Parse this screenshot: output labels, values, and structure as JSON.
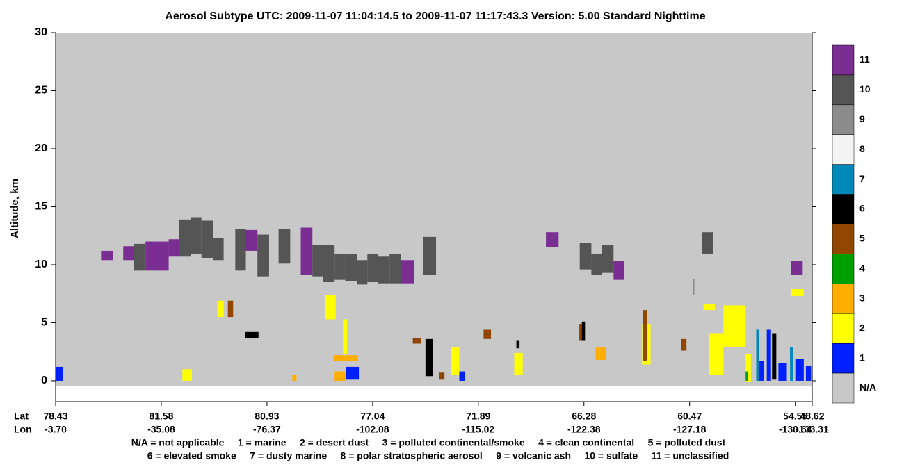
{
  "chart_data": {
    "type": "heatmap",
    "title": "Aerosol Subtype    UTC:  2009-11-07   11:04:14.5  to  2009-11-07   11:17:43.3    Version: 5.00  Standard Nighttime",
    "y_label": "Altitude, km",
    "x_row_labels": [
      "Lat",
      "Lon"
    ],
    "ylim": [
      -1.8,
      30
    ],
    "yticks": [
      0,
      5,
      10,
      15,
      20,
      25,
      30
    ],
    "xlim": [
      0,
      7.16
    ],
    "xticks": [
      {
        "value": 0,
        "lat": "78.43",
        "lon": "-3.70"
      },
      {
        "value": 1,
        "lat": "81.58",
        "lon": "-35.08"
      },
      {
        "value": 2,
        "lat": "80.93",
        "lon": "-76.37"
      },
      {
        "value": 3,
        "lat": "77.04",
        "lon": "-102.08"
      },
      {
        "value": 4,
        "lat": "71.89",
        "lon": "-115.02"
      },
      {
        "value": 5,
        "lat": "66.28",
        "lon": "-122.38"
      },
      {
        "value": 6,
        "lat": "60.47",
        "lon": "-127.18"
      },
      {
        "value": 7,
        "lat": "54.55",
        "lon": "-130.64"
      },
      {
        "value": 7.16,
        "lat": "48.62",
        "lon": "-133.31"
      }
    ],
    "classes": [
      {
        "code": 11,
        "color": "#7a2e92"
      },
      {
        "code": 10,
        "color": "#555555"
      },
      {
        "code": 9,
        "color": "#8c8c8c"
      },
      {
        "code": 8,
        "color": "#f4f4f4"
      },
      {
        "code": 7,
        "color": "#0088bb"
      },
      {
        "code": 6,
        "color": "#000000"
      },
      {
        "code": 5,
        "color": "#924700"
      },
      {
        "code": 4,
        "color": "#00a000"
      },
      {
        "code": 3,
        "color": "#ffae00"
      },
      {
        "code": 2,
        "color": "#ffff00"
      },
      {
        "code": 1,
        "color": "#0020ff"
      },
      {
        "code": "N/A",
        "color": "#c8c8c8"
      }
    ],
    "legend_text": [
      "N/A = not applicable     1 = marine     2 = desert dust     3 = polluted continental/smoke     4 = clean continental     5 = polluted dust",
      "6 = elevated smoke     7 = dusty marine     8 = polar stratospheric aerosol     9 = volcanic ash     10 = sulfate     11 = unclassified"
    ],
    "cells": [
      {
        "x0": 0.43,
        "x1": 0.54,
        "y0": 10.4,
        "y1": 11.2,
        "class": 11
      },
      {
        "x0": 0.64,
        "x1": 0.74,
        "y0": 10.4,
        "y1": 11.6,
        "class": 11
      },
      {
        "x0": 0.85,
        "x1": 1.07,
        "y0": 9.5,
        "y1": 12.0,
        "class": 11
      },
      {
        "x0": 1.07,
        "x1": 1.17,
        "y0": 10.7,
        "y1": 12.2,
        "class": 11
      },
      {
        "x0": 2.32,
        "x1": 2.43,
        "y0": 9.1,
        "y1": 13.2,
        "class": 11
      },
      {
        "x0": 3.27,
        "x1": 3.39,
        "y0": 8.4,
        "y1": 10.4,
        "class": 11
      },
      {
        "x0": 4.64,
        "x1": 4.76,
        "y0": 11.5,
        "y1": 12.8,
        "class": 11
      },
      {
        "x0": 5.28,
        "x1": 5.38,
        "y0": 8.7,
        "y1": 10.3,
        "class": 11
      },
      {
        "x0": 6.96,
        "x1": 7.07,
        "y0": 9.1,
        "y1": 10.3,
        "class": 11
      },
      {
        "x0": 0.74,
        "x1": 0.85,
        "y0": 9.5,
        "y1": 11.8,
        "class": 10
      },
      {
        "x0": 1.17,
        "x1": 1.28,
        "y0": 10.7,
        "y1": 13.9,
        "class": 10
      },
      {
        "x0": 1.28,
        "x1": 1.38,
        "y0": 10.9,
        "y1": 14.1,
        "class": 10
      },
      {
        "x0": 1.38,
        "x1": 1.49,
        "y0": 10.6,
        "y1": 13.8,
        "class": 10
      },
      {
        "x0": 1.49,
        "x1": 1.59,
        "y0": 10.4,
        "y1": 12.3,
        "class": 10
      },
      {
        "x0": 1.7,
        "x1": 1.8,
        "y0": 9.5,
        "y1": 13.1,
        "class": 10
      },
      {
        "x0": 1.91,
        "x1": 2.02,
        "y0": 9.0,
        "y1": 12.6,
        "class": 10
      },
      {
        "x0": 2.11,
        "x1": 2.22,
        "y0": 10.1,
        "y1": 13.1,
        "class": 10
      },
      {
        "x0": 2.43,
        "x1": 2.53,
        "y0": 9.0,
        "y1": 11.7,
        "class": 10
      },
      {
        "x0": 2.53,
        "x1": 2.64,
        "y0": 8.5,
        "y1": 11.7,
        "class": 10
      },
      {
        "x0": 2.64,
        "x1": 2.74,
        "y0": 8.7,
        "y1": 10.9,
        "class": 10
      },
      {
        "x0": 2.74,
        "x1": 2.85,
        "y0": 8.6,
        "y1": 10.9,
        "class": 10
      },
      {
        "x0": 2.85,
        "x1": 2.95,
        "y0": 8.3,
        "y1": 10.4,
        "class": 10
      },
      {
        "x0": 2.95,
        "x1": 3.05,
        "y0": 8.5,
        "y1": 10.9,
        "class": 10
      },
      {
        "x0": 3.05,
        "x1": 3.16,
        "y0": 8.4,
        "y1": 10.7,
        "class": 10
      },
      {
        "x0": 3.16,
        "x1": 3.27,
        "y0": 8.4,
        "y1": 10.9,
        "class": 10
      },
      {
        "x0": 3.48,
        "x1": 3.6,
        "y0": 9.1,
        "y1": 12.4,
        "class": 10
      },
      {
        "x0": 4.96,
        "x1": 5.07,
        "y0": 9.6,
        "y1": 11.9,
        "class": 10
      },
      {
        "x0": 5.07,
        "x1": 5.17,
        "y0": 9.1,
        "y1": 10.9,
        "class": 10
      },
      {
        "x0": 5.17,
        "x1": 5.28,
        "y0": 9.3,
        "y1": 11.7,
        "class": 10
      },
      {
        "x0": 6.12,
        "x1": 6.22,
        "y0": 10.9,
        "y1": 12.8,
        "class": 10
      },
      {
        "x0": 1.79,
        "x1": 1.91,
        "y0": 11.2,
        "y1": 13.0,
        "class": 11
      },
      {
        "x0": 6.03,
        "x1": 6.045,
        "y0": 7.4,
        "y1": 8.8,
        "class": 9
      },
      {
        "x0": 1.53,
        "x1": 1.59,
        "y0": 5.5,
        "y1": 6.9,
        "class": 2
      },
      {
        "x0": 2.55,
        "x1": 2.65,
        "y0": 5.3,
        "y1": 7.4,
        "class": 2
      },
      {
        "x0": 2.72,
        "x1": 2.76,
        "y0": 2.3,
        "y1": 5.3,
        "class": 2
      },
      {
        "x0": 3.74,
        "x1": 3.82,
        "y0": 0.5,
        "y1": 2.9,
        "class": 2
      },
      {
        "x0": 4.34,
        "x1": 4.42,
        "y0": 0.5,
        "y1": 2.4,
        "class": 2
      },
      {
        "x0": 5.55,
        "x1": 5.63,
        "y0": 1.4,
        "y1": 4.9,
        "class": 2
      },
      {
        "x0": 6.32,
        "x1": 6.53,
        "y0": 2.9,
        "y1": 6.5,
        "class": 2
      },
      {
        "x0": 6.53,
        "x1": 6.58,
        "y0": -0.1,
        "y1": 2.3,
        "class": 2
      },
      {
        "x0": 6.13,
        "x1": 6.24,
        "y0": 6.1,
        "y1": 6.6,
        "class": 2
      },
      {
        "x0": 6.96,
        "x1": 7.08,
        "y0": 7.3,
        "y1": 7.9,
        "class": 2
      },
      {
        "x0": 1.2,
        "x1": 1.29,
        "y0": 0,
        "y1": 1.0,
        "class": 2
      },
      {
        "x0": 6.18,
        "x1": 6.32,
        "y0": 0.5,
        "y1": 4.1,
        "class": 2
      },
      {
        "x0": 2.64,
        "x1": 2.75,
        "y0": 0,
        "y1": 0.8,
        "class": 3
      },
      {
        "x0": 2.63,
        "x1": 2.86,
        "y0": 1.7,
        "y1": 2.2,
        "class": 3
      },
      {
        "x0": 5.11,
        "x1": 5.21,
        "y0": 1.8,
        "y1": 2.9,
        "class": 3
      },
      {
        "x0": 2.24,
        "x1": 2.28,
        "y0": 0,
        "y1": 0.5,
        "class": 3
      },
      {
        "x0": 5.56,
        "x1": 5.6,
        "y0": 1.7,
        "y1": 6.1,
        "class": 5
      },
      {
        "x0": 4.95,
        "x1": 4.99,
        "y0": 3.5,
        "y1": 4.9,
        "class": 5
      },
      {
        "x0": 4.05,
        "x1": 4.12,
        "y0": 3.6,
        "y1": 4.4,
        "class": 5
      },
      {
        "x0": 3.38,
        "x1": 3.46,
        "y0": 3.2,
        "y1": 3.7,
        "class": 5
      },
      {
        "x0": 1.63,
        "x1": 1.68,
        "y0": 5.5,
        "y1": 6.9,
        "class": 5
      },
      {
        "x0": 5.92,
        "x1": 5.97,
        "y0": 2.6,
        "y1": 3.6,
        "class": 5
      },
      {
        "x0": 3.63,
        "x1": 3.68,
        "y0": 0.1,
        "y1": 0.7,
        "class": 5
      },
      {
        "x0": 3.5,
        "x1": 3.57,
        "y0": 0.4,
        "y1": 3.6,
        "class": 6
      },
      {
        "x0": 1.79,
        "x1": 1.92,
        "y0": 3.7,
        "y1": 4.2,
        "class": 6
      },
      {
        "x0": 4.98,
        "x1": 5.01,
        "y0": 3.5,
        "y1": 5.1,
        "class": 6
      },
      {
        "x0": 4.36,
        "x1": 4.39,
        "y0": 2.8,
        "y1": 3.5,
        "class": 6
      },
      {
        "x0": 6.78,
        "x1": 6.82,
        "y0": 0.1,
        "y1": 4.1,
        "class": 6
      },
      {
        "x0": 2.75,
        "x1": 2.87,
        "y0": 0.1,
        "y1": 1.2,
        "class": 1
      },
      {
        "x0": 0,
        "x1": 0.07,
        "y0": 0,
        "y1": 1.2,
        "class": 1
      },
      {
        "x0": 3.82,
        "x1": 3.87,
        "y0": 0,
        "y1": 0.8,
        "class": 1
      },
      {
        "x0": 6.64,
        "x1": 6.7,
        "y0": 0,
        "y1": 1.7,
        "class": 1
      },
      {
        "x0": 6.73,
        "x1": 6.77,
        "y0": 0,
        "y1": 4.4,
        "class": 1
      },
      {
        "x0": 6.84,
        "x1": 6.92,
        "y0": 0,
        "y1": 1.5,
        "class": 1
      },
      {
        "x0": 7.0,
        "x1": 7.08,
        "y0": 0,
        "y1": 1.9,
        "class": 1
      },
      {
        "x0": 7.1,
        "x1": 7.15,
        "y0": 0,
        "y1": 1.3,
        "class": 1
      },
      {
        "x0": 6.63,
        "x1": 6.66,
        "y0": 0,
        "y1": 4.4,
        "class": 7
      },
      {
        "x0": 6.95,
        "x1": 6.98,
        "y0": 0,
        "y1": 2.9,
        "class": 7
      },
      {
        "x0": 6.53,
        "x1": 6.55,
        "y0": 0,
        "y1": 0.8,
        "class": 4
      }
    ]
  }
}
